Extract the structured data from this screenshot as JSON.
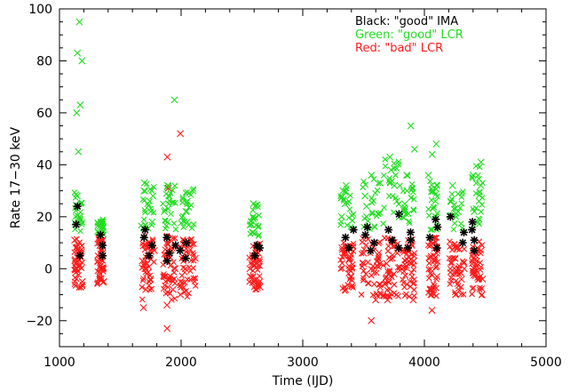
{
  "chart_data": {
    "type": "scatter",
    "title": "",
    "xlabel": "Time (IJD)",
    "ylabel": "Rate 17−30 keV",
    "xlim": [
      1000,
      5000
    ],
    "ylim": [
      -30,
      100
    ],
    "xticks": [
      1000,
      2000,
      3000,
      4000,
      5000
    ],
    "yticks": [
      -20,
      0,
      20,
      40,
      60,
      80,
      100
    ],
    "grid": false,
    "legend_position": "top-right",
    "marker": "asterisk/cross with vertical error bars",
    "legend": [
      {
        "label": "Black: \"good\" IMA",
        "color": "#000000"
      },
      {
        "label": "Green: \"good\" LCR",
        "color": "#22dd22"
      },
      {
        "label": "Red: \"bad\" LCR",
        "color": "#ff1a1a"
      }
    ],
    "observation_groups": [
      {
        "x": [
          1120,
          1190
        ],
        "good_ima": [
          5,
          17,
          24
        ],
        "good_lcr": [
          20,
          28,
          45,
          60,
          63,
          80,
          83,
          95
        ],
        "bad_lcr": [
          -5,
          0,
          3,
          8,
          11
        ],
        "bad_lcr_range": [
          -8,
          12
        ],
        "good_lcr_range": [
          14,
          30
        ]
      },
      {
        "x": [
          1310,
          1365
        ],
        "good_ima": [
          5,
          9,
          13
        ],
        "good_lcr": [
          14,
          16,
          18
        ],
        "bad_lcr": [
          -5,
          0,
          3,
          6,
          9
        ],
        "bad_lcr_range": [
          -6,
          12
        ],
        "good_lcr_range": [
          13,
          19
        ]
      },
      {
        "x": [
          1670,
          1780
        ],
        "good_ima": [
          5,
          9,
          12,
          15
        ],
        "good_lcr": [
          18,
          22,
          25,
          28,
          30,
          33
        ],
        "bad_lcr": [
          -15,
          -8,
          -4,
          0,
          3,
          7,
          10
        ],
        "bad_lcr_range": [
          -12,
          13
        ],
        "good_lcr_range": [
          15,
          33
        ]
      },
      {
        "x": [
          1850,
          1960
        ],
        "good_ima": [
          3,
          6,
          9,
          12
        ],
        "good_lcr": [
          18,
          22,
          25,
          28,
          32,
          65
        ],
        "bad_lcr": [
          -23,
          -14,
          -8,
          -3,
          0,
          4,
          8,
          31,
          43
        ],
        "bad_lcr_range": [
          -12,
          13
        ],
        "good_lcr_range": [
          15,
          32
        ]
      },
      {
        "x": [
          1990,
          2120
        ],
        "good_ima": [
          4,
          7,
          10
        ],
        "good_lcr": [
          18,
          22,
          26,
          30
        ],
        "bad_lcr": [
          -10,
          -5,
          0,
          4,
          8,
          52
        ],
        "bad_lcr_range": [
          -11,
          12
        ],
        "good_lcr_range": [
          14,
          31
        ]
      },
      {
        "x": [
          2560,
          2650
        ],
        "good_ima": [
          5,
          8,
          9
        ],
        "good_lcr": [
          14,
          17,
          20,
          25
        ],
        "bad_lcr": [
          -7,
          -3,
          0,
          3,
          6
        ],
        "bad_lcr_range": [
          -8,
          10
        ],
        "good_lcr_range": [
          12,
          25
        ]
      },
      {
        "x": [
          3310,
          3420
        ],
        "good_ima": [
          8,
          12,
          15
        ],
        "good_lcr": [
          20,
          25,
          30,
          32
        ],
        "bad_lcr": [
          -8,
          -3,
          0,
          4,
          8
        ],
        "bad_lcr_range": [
          -9,
          11
        ],
        "good_lcr_range": [
          15,
          32
        ]
      },
      {
        "x": [
          3480,
          3640
        ],
        "good_ima": [
          7,
          10,
          13,
          16
        ],
        "good_lcr": [
          20,
          24,
          28,
          33,
          36
        ],
        "bad_lcr": [
          -20,
          -12,
          -6,
          -2,
          2,
          6
        ],
        "bad_lcr_range": [
          -11,
          12
        ],
        "good_lcr_range": [
          15,
          36
        ]
      },
      {
        "x": [
          3660,
          3800
        ],
        "good_ima": [
          8,
          11,
          15,
          21
        ],
        "good_lcr": [
          20,
          26,
          32,
          38,
          43
        ],
        "bad_lcr": [
          -12,
          -6,
          -2,
          2,
          6
        ],
        "bad_lcr_range": [
          -11,
          12
        ],
        "good_lcr_range": [
          16,
          43
        ]
      },
      {
        "x": [
          3820,
          3920
        ],
        "good_ima": [
          8,
          11,
          14
        ],
        "good_lcr": [
          20,
          25,
          30,
          36,
          46,
          55
        ],
        "bad_lcr": [
          -12,
          -6,
          -1,
          3,
          7
        ],
        "bad_lcr_range": [
          -12,
          12
        ],
        "good_lcr_range": [
          16,
          36
        ]
      },
      {
        "x": [
          4030,
          4110
        ],
        "good_ima": [
          8,
          12,
          16,
          19
        ],
        "good_lcr": [
          20,
          26,
          32,
          36,
          44,
          48
        ],
        "bad_lcr": [
          -16,
          -8,
          -3,
          1,
          6
        ],
        "bad_lcr_range": [
          -11,
          12
        ],
        "good_lcr_range": [
          15,
          36
        ]
      },
      {
        "x": [
          4200,
          4330
        ],
        "good_ima": [
          10,
          14,
          20
        ],
        "good_lcr": [
          22,
          26,
          32
        ],
        "bad_lcr": [
          -10,
          -4,
          0,
          4,
          8
        ],
        "bad_lcr_range": [
          -10,
          11
        ],
        "good_lcr_range": [
          15,
          30
        ]
      },
      {
        "x": [
          4390,
          4480
        ],
        "good_ima": [
          7,
          11,
          15,
          18
        ],
        "good_lcr": [
          22,
          26,
          32,
          36,
          41
        ],
        "bad_lcr": [
          -10,
          -4,
          0,
          4,
          8
        ],
        "bad_lcr_range": [
          -11,
          11
        ],
        "good_lcr_range": [
          16,
          41
        ]
      }
    ]
  }
}
